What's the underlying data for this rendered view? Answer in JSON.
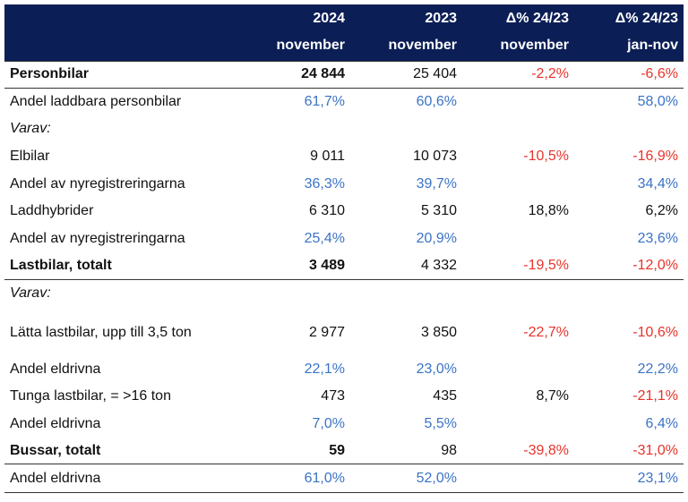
{
  "header": {
    "cols": [
      {
        "l1": "2024",
        "l2": "november"
      },
      {
        "l1": "2023",
        "l2": "november"
      },
      {
        "l1": "Δ% 24/23",
        "l2": "november"
      },
      {
        "l1": "Δ% 24/23",
        "l2": "jan-nov"
      }
    ]
  },
  "rows": [
    {
      "label": "Personbilar",
      "v1": "24 844",
      "v2": "25 404",
      "v3": "-2,2%",
      "v4": "-6,6%"
    },
    {
      "label": "Andel laddbara personbilar",
      "v1": "61,7%",
      "v2": "60,6%",
      "v3": "",
      "v4": "58,0%"
    },
    {
      "label": "Varav:",
      "v1": "",
      "v2": "",
      "v3": "",
      "v4": ""
    },
    {
      "label": "Elbilar",
      "v1": "9 011",
      "v2": "10 073",
      "v3": "-10,5%",
      "v4": "-16,9%"
    },
    {
      "label": "Andel av nyregistreringarna",
      "v1": "36,3%",
      "v2": "39,7%",
      "v3": "",
      "v4": "34,4%"
    },
    {
      "label": "Laddhybrider",
      "v1": "6 310",
      "v2": "5 310",
      "v3": "18,8%",
      "v4": "6,2%"
    },
    {
      "label": "Andel av nyregistreringarna",
      "v1": "25,4%",
      "v2": "20,9%",
      "v3": "",
      "v4": "23,6%"
    },
    {
      "label": "Lastbilar, totalt",
      "v1": "3 489",
      "v2": "4 332",
      "v3": "-19,5%",
      "v4": "-12,0%"
    },
    {
      "label": "Varav:",
      "v1": "",
      "v2": "",
      "v3": "",
      "v4": ""
    },
    {
      "label": "Lätta lastbilar, upp till 3,5 ton",
      "v1": "2 977",
      "v2": "3 850",
      "v3": "-22,7%",
      "v4": "-10,6%"
    },
    {
      "label": "Andel eldrivna",
      "v1": "22,1%",
      "v2": "23,0%",
      "v3": "",
      "v4": "22,2%"
    },
    {
      "label": "Tunga lastbilar, = >16 ton",
      "v1": "473",
      "v2": "435",
      "v3": "8,7%",
      "v4": "-21,1%"
    },
    {
      "label": "Andel eldrivna",
      "v1": "7,0%",
      "v2": "5,5%",
      "v3": "",
      "v4": "6,4%"
    },
    {
      "label": "Bussar, totalt",
      "v1": "59",
      "v2": "98",
      "v3": "-39,8%",
      "v4": "-31,0%"
    },
    {
      "label": "Andel eldrivna",
      "v1": "61,0%",
      "v2": "52,0%",
      "v3": "",
      "v4": "23,1%"
    }
  ],
  "colors": {
    "header_bg": "#0b1e56",
    "blue": "#3a73c6",
    "red": "#e8332b"
  }
}
